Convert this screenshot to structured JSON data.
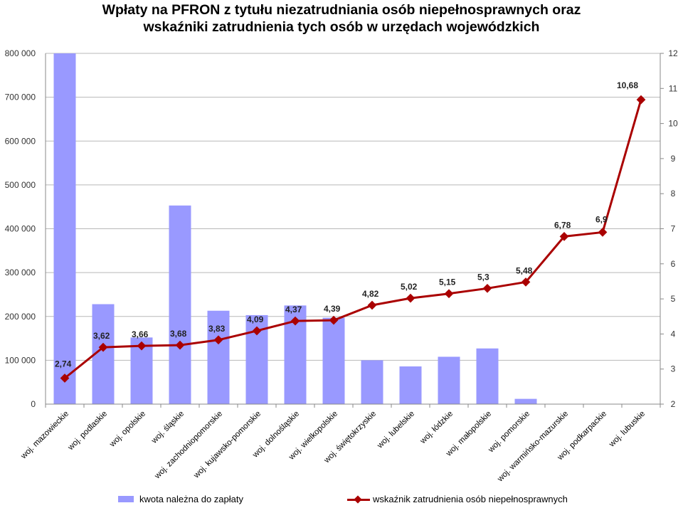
{
  "chart_data": {
    "type": "bar+line",
    "title_lines": [
      "Wpłaty na PFRON z tytułu niezatrudniania osób niepełnosprawnych oraz",
      "wskaźniki zatrudnienia tych osób w urzędach wojewódzkich"
    ],
    "categories": [
      "woj. mazowieckie",
      "woj. podlaskie",
      "woj. opolskie",
      "woj. śląskie",
      "woj. zachodniopomorskie",
      "woj. kujawsko-pomorskie",
      "woj. dolnośląskie",
      "woj. wielkopolskie",
      "woj. świętokrzyskie",
      "woj. lubelskie",
      "woj. łódzkie",
      "woj. małopolskie",
      "woj. pomorskie",
      "woj. warmińsko-mazurskie",
      "woj. podkarpackie",
      "woj. lubuskie"
    ],
    "series": [
      {
        "name": "kwota należna do zapłaty",
        "type": "bar",
        "axis": "left",
        "color": "#9999ff",
        "values": [
          800000,
          228000,
          152000,
          453000,
          213000,
          203000,
          225000,
          197000,
          100000,
          86000,
          108000,
          127000,
          12000,
          0,
          0,
          0
        ]
      },
      {
        "name": "wskaźnik zatrudnienia osób niepełnosprawnych",
        "type": "line",
        "axis": "right",
        "color": "#aa0000",
        "values": [
          2.74,
          3.62,
          3.66,
          3.68,
          3.83,
          4.09,
          4.37,
          4.39,
          4.82,
          5.02,
          5.15,
          5.3,
          5.48,
          6.78,
          6.9,
          10.68
        ],
        "labels": [
          "2,74",
          "3,62",
          "3,66",
          "3,68",
          "3,83",
          "4,09",
          "4,37",
          "4,39",
          "4,82",
          "5,02",
          "5,15",
          "5,3",
          "5,48",
          "6,78",
          "6,9",
          "10,68"
        ]
      }
    ],
    "left_axis": {
      "ylim": [
        0,
        800000
      ],
      "ticks": [
        0,
        100000,
        200000,
        300000,
        400000,
        500000,
        600000,
        700000,
        800000
      ],
      "tick_labels": [
        "0",
        "100 000",
        "200 000",
        "300 000",
        "400 000",
        "500 000",
        "600 000",
        "700 000",
        "800 000"
      ]
    },
    "right_axis": {
      "ylim": [
        2,
        12
      ],
      "ticks": [
        2,
        3,
        4,
        5,
        6,
        7,
        8,
        9,
        10,
        11,
        12
      ],
      "tick_labels": [
        "2",
        "3",
        "4",
        "5",
        "6",
        "7",
        "8",
        "9",
        "10",
        "11",
        "12"
      ]
    },
    "grid": true,
    "legend_position": "bottom"
  }
}
